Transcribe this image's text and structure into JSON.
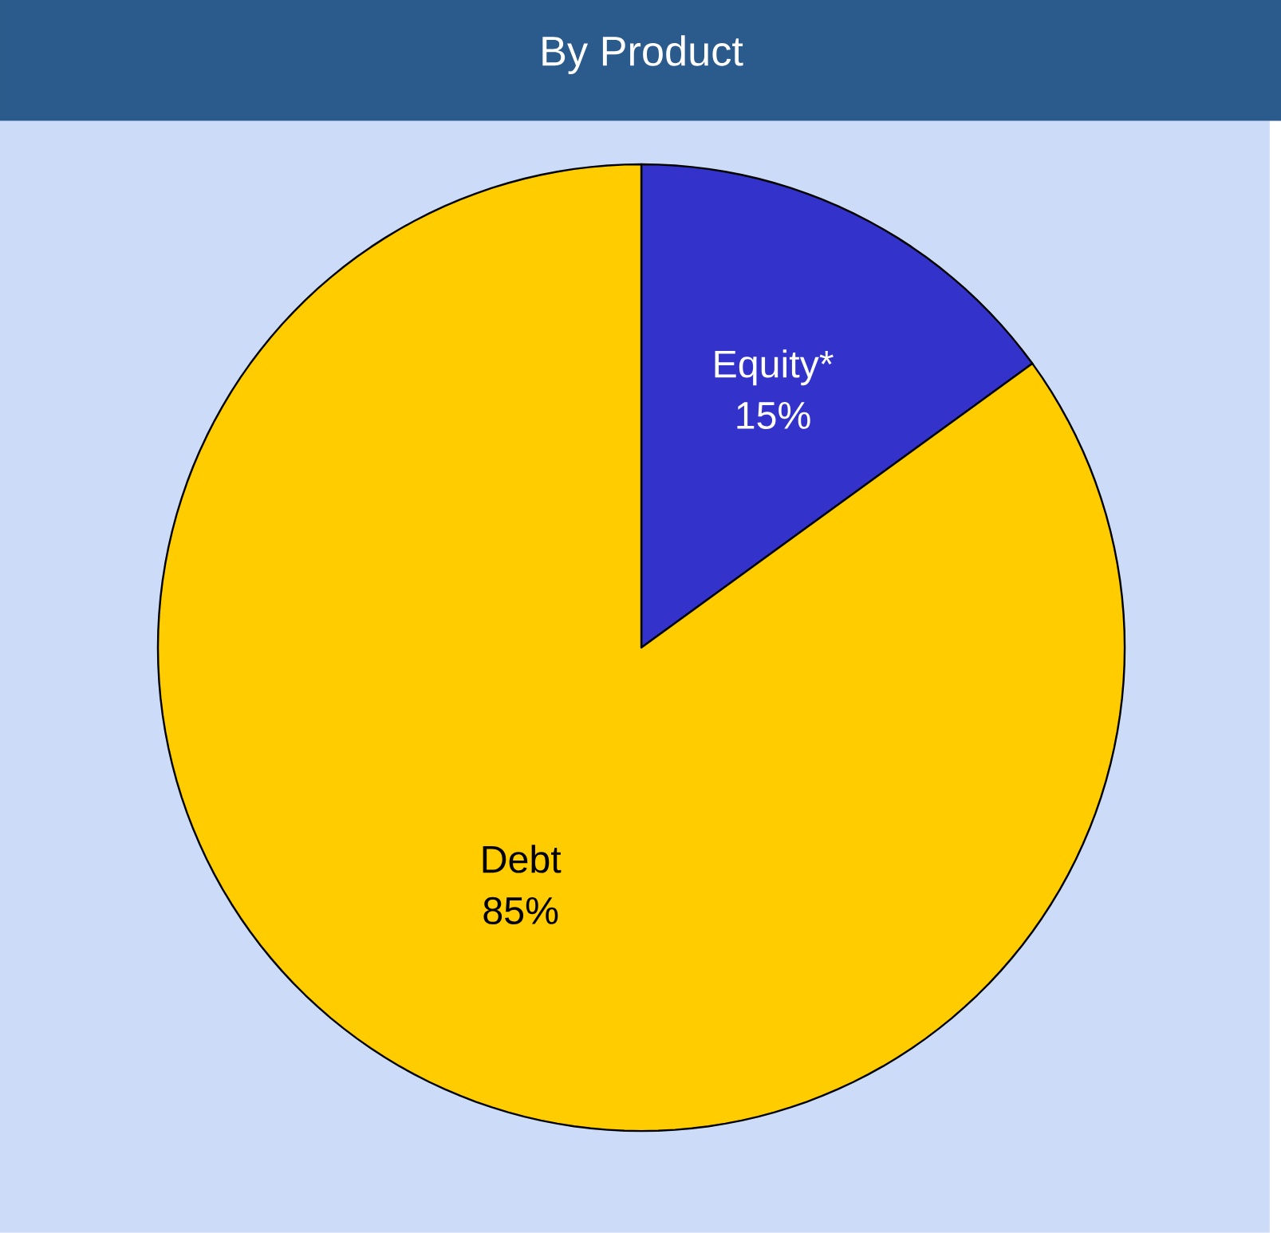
{
  "chart_data": {
    "type": "pie",
    "title": "By Product",
    "categories": [
      "Equity*",
      "Debt"
    ],
    "values": [
      15,
      85
    ],
    "value_labels": [
      "15%",
      "85%"
    ],
    "colors": [
      "#3333cc",
      "#ffcc00"
    ]
  }
}
